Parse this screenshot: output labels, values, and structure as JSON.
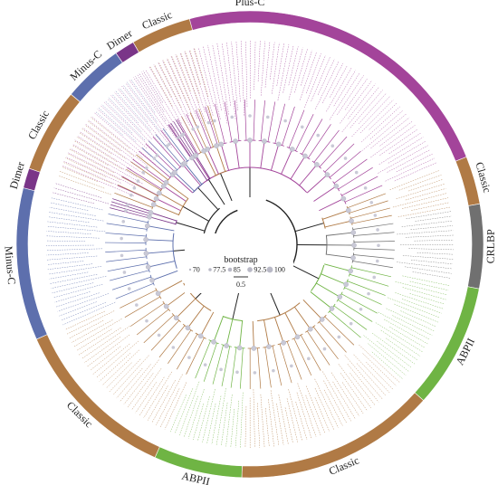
{
  "figure": {
    "title": "",
    "segments": [
      {
        "label": "Plus-C",
        "color": "#a3449a",
        "start": -68,
        "end": 68
      },
      {
        "label": "Classic",
        "color": "#b07a45",
        "start": 68,
        "end": 80
      },
      {
        "label": "CRLBP",
        "color": "#707070",
        "start": 80,
        "end": 101
      },
      {
        "label": "ABPII",
        "color": "#6fb444",
        "start": 101,
        "end": 132
      },
      {
        "label": "Classic",
        "color": "#b07a45",
        "start": 132,
        "end": 182
      },
      {
        "label": "ABPII",
        "color": "#6fb444",
        "start": 182,
        "end": 204
      },
      {
        "label": "Classic",
        "color": "#b07a45",
        "start": 204,
        "end": 246
      },
      {
        "label": "Minus-C",
        "color": "#5d6fad",
        "start": 246,
        "end": 284
      },
      {
        "label": "Dimer",
        "color": "#7a3588",
        "start": 284,
        "end": 289
      },
      {
        "label": "Classic",
        "color": "#b07a45",
        "start": 289,
        "end": 310
      },
      {
        "label": "Minus-C",
        "color": "#5d6fad",
        "start": 310,
        "end": 325
      },
      {
        "label": "Dimer",
        "color": "#7a3588",
        "start": 325,
        "end": 330
      },
      {
        "label": "Classic",
        "color": "#b07a45",
        "start": 330,
        "end": 345
      }
    ],
    "legend": {
      "title": "bootstrap",
      "values": [
        "70",
        "77.5",
        "85",
        "92.5",
        "100"
      ],
      "scale_label": "0.5"
    }
  }
}
